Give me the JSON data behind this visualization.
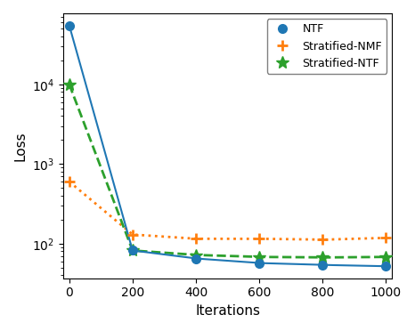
{
  "ntf_markers_x": [
    0,
    200,
    400,
    600,
    800,
    1000
  ],
  "ntf_markers_y": [
    55000,
    82,
    65,
    57,
    54,
    52
  ],
  "nmf_markers_x": [
    0,
    200,
    400,
    600,
    800,
    1000
  ],
  "nmf_markers_y": [
    600,
    130,
    115,
    115,
    112,
    118
  ],
  "sntf_markers_x": [
    0,
    200,
    400,
    600,
    800,
    1000
  ],
  "sntf_markers_y": [
    10000,
    82,
    72,
    68,
    67,
    68
  ],
  "ntf_color": "#1f77b4",
  "nmf_color": "#ff7f0e",
  "sntf_color": "#2ca02c",
  "xlabel": "Iterations",
  "ylabel": "Loss",
  "ntf_label": "NTF",
  "nmf_label": "Stratified-NMF",
  "sntf_label": "Stratified-NTF",
  "xlim": [
    -20,
    1020
  ],
  "xticks": [
    0,
    200,
    400,
    600,
    800,
    1000
  ],
  "legend_loc": "upper right",
  "figsize": [
    4.66,
    3.72
  ],
  "dpi": 100
}
